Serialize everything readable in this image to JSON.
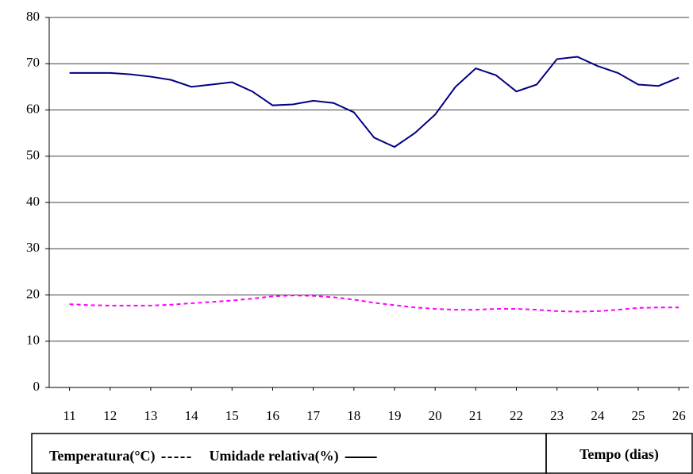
{
  "chart_data": {
    "type": "line",
    "x": [
      11,
      11.5,
      12,
      12.5,
      13,
      13.5,
      14,
      14.5,
      15,
      15.5,
      16,
      16.5,
      17,
      17.5,
      18,
      18.5,
      19,
      19.5,
      20,
      20.5,
      21,
      21.5,
      22,
      22.5,
      23,
      23.5,
      24,
      24.5,
      25,
      25.5,
      26
    ],
    "series": [
      {
        "name": "Temperatura(°C)",
        "color": "#ff00ff",
        "dash": true,
        "values": [
          18,
          17.8,
          17.7,
          17.7,
          17.7,
          17.9,
          18.2,
          18.5,
          18.8,
          19.2,
          19.7,
          19.9,
          19.8,
          19.5,
          19,
          18.3,
          17.8,
          17.3,
          17,
          16.8,
          16.8,
          17,
          17,
          16.8,
          16.5,
          16.4,
          16.5,
          16.8,
          17.2,
          17.3,
          17.3
        ]
      },
      {
        "name": "Umidade relativa(%)",
        "color": "#000080",
        "dash": false,
        "values": [
          68,
          68,
          68,
          67.7,
          67.2,
          66.5,
          65,
          65.5,
          66,
          64,
          61,
          61.2,
          62,
          61.5,
          59.5,
          54,
          52,
          55,
          59,
          65,
          69,
          67.5,
          64,
          65.5,
          71,
          71.5,
          69.5,
          68,
          65.5,
          65.2,
          67
        ]
      }
    ],
    "x_label": "Tempo (dias)",
    "xlim": [
      10.5,
      26.25
    ],
    "xticks": [
      11,
      12,
      13,
      14,
      15,
      16,
      17,
      18,
      19,
      20,
      21,
      22,
      23,
      24,
      25,
      26
    ],
    "ylim": [
      0,
      80
    ],
    "yticks": [
      0,
      10,
      20,
      30,
      40,
      50,
      60,
      70,
      80
    ],
    "grid": true
  }
}
